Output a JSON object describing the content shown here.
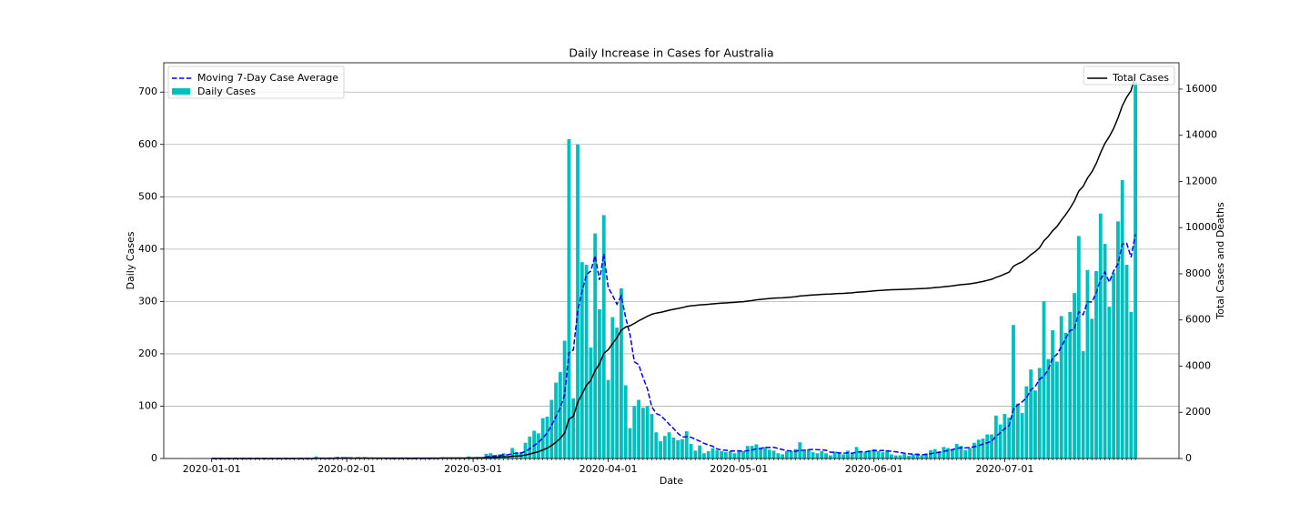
{
  "chart_data": {
    "type": "bar",
    "title": "Daily Increase in Cases for Australia",
    "x_label": "Date",
    "y_label": "Daily Cases",
    "y2_label": "Total Cases and Deaths",
    "grid": true,
    "xlim": [
      "2019-12-21",
      "2020-08-10"
    ],
    "xticks": [
      "2020-01-01",
      "2020-02-01",
      "2020-03-01",
      "2020-04-01",
      "2020-05-01",
      "2020-06-01",
      "2020-07-01"
    ],
    "ylim": [
      0,
      756
    ],
    "yticks": [
      0,
      100,
      200,
      300,
      400,
      500,
      600,
      700
    ],
    "y2lim": [
      0,
      17140
    ],
    "y2ticks": [
      0,
      2000,
      4000,
      6000,
      8000,
      10000,
      12000,
      14000,
      16000
    ],
    "x": [
      "2020-01-01",
      "2020-01-02",
      "2020-01-03",
      "2020-01-04",
      "2020-01-05",
      "2020-01-06",
      "2020-01-07",
      "2020-01-08",
      "2020-01-09",
      "2020-01-10",
      "2020-01-11",
      "2020-01-12",
      "2020-01-13",
      "2020-01-14",
      "2020-01-15",
      "2020-01-16",
      "2020-01-17",
      "2020-01-18",
      "2020-01-19",
      "2020-01-20",
      "2020-01-21",
      "2020-01-22",
      "2020-01-23",
      "2020-01-24",
      "2020-01-25",
      "2020-01-26",
      "2020-01-27",
      "2020-01-28",
      "2020-01-29",
      "2020-01-30",
      "2020-01-31",
      "2020-02-01",
      "2020-02-02",
      "2020-02-03",
      "2020-02-04",
      "2020-02-05",
      "2020-02-06",
      "2020-02-07",
      "2020-02-08",
      "2020-02-09",
      "2020-02-10",
      "2020-02-11",
      "2020-02-12",
      "2020-02-13",
      "2020-02-14",
      "2020-02-15",
      "2020-02-16",
      "2020-02-17",
      "2020-02-18",
      "2020-02-19",
      "2020-02-20",
      "2020-02-21",
      "2020-02-22",
      "2020-02-23",
      "2020-02-24",
      "2020-02-25",
      "2020-02-26",
      "2020-02-27",
      "2020-02-28",
      "2020-02-29",
      "2020-03-01",
      "2020-03-02",
      "2020-03-03",
      "2020-03-04",
      "2020-03-05",
      "2020-03-06",
      "2020-03-07",
      "2020-03-08",
      "2020-03-09",
      "2020-03-10",
      "2020-03-11",
      "2020-03-12",
      "2020-03-13",
      "2020-03-14",
      "2020-03-15",
      "2020-03-16",
      "2020-03-17",
      "2020-03-18",
      "2020-03-19",
      "2020-03-20",
      "2020-03-21",
      "2020-03-22",
      "2020-03-23",
      "2020-03-24",
      "2020-03-25",
      "2020-03-26",
      "2020-03-27",
      "2020-03-28",
      "2020-03-29",
      "2020-03-30",
      "2020-03-31",
      "2020-04-01",
      "2020-04-02",
      "2020-04-03",
      "2020-04-04",
      "2020-04-05",
      "2020-04-06",
      "2020-04-07",
      "2020-04-08",
      "2020-04-09",
      "2020-04-10",
      "2020-04-11",
      "2020-04-12",
      "2020-04-13",
      "2020-04-14",
      "2020-04-15",
      "2020-04-16",
      "2020-04-17",
      "2020-04-18",
      "2020-04-19",
      "2020-04-20",
      "2020-04-21",
      "2020-04-22",
      "2020-04-23",
      "2020-04-24",
      "2020-04-25",
      "2020-04-26",
      "2020-04-27",
      "2020-04-28",
      "2020-04-29",
      "2020-04-30",
      "2020-05-01",
      "2020-05-02",
      "2020-05-03",
      "2020-05-04",
      "2020-05-05",
      "2020-05-06",
      "2020-05-07",
      "2020-05-08",
      "2020-05-09",
      "2020-05-10",
      "2020-05-11",
      "2020-05-12",
      "2020-05-13",
      "2020-05-14",
      "2020-05-15",
      "2020-05-16",
      "2020-05-17",
      "2020-05-18",
      "2020-05-19",
      "2020-05-20",
      "2020-05-21",
      "2020-05-22",
      "2020-05-23",
      "2020-05-24",
      "2020-05-25",
      "2020-05-26",
      "2020-05-27",
      "2020-05-28",
      "2020-05-29",
      "2020-05-30",
      "2020-05-31",
      "2020-06-01",
      "2020-06-02",
      "2020-06-03",
      "2020-06-04",
      "2020-06-05",
      "2020-06-06",
      "2020-06-07",
      "2020-06-08",
      "2020-06-09",
      "2020-06-10",
      "2020-06-11",
      "2020-06-12",
      "2020-06-13",
      "2020-06-14",
      "2020-06-15",
      "2020-06-16",
      "2020-06-17",
      "2020-06-18",
      "2020-06-19",
      "2020-06-20",
      "2020-06-21",
      "2020-06-22",
      "2020-06-23",
      "2020-06-24",
      "2020-06-25",
      "2020-06-26",
      "2020-06-27",
      "2020-06-28",
      "2020-06-29",
      "2020-06-30",
      "2020-07-01",
      "2020-07-02",
      "2020-07-03",
      "2020-07-04",
      "2020-07-05",
      "2020-07-06",
      "2020-07-07",
      "2020-07-08",
      "2020-07-09",
      "2020-07-10",
      "2020-07-11",
      "2020-07-12",
      "2020-07-13",
      "2020-07-14",
      "2020-07-15",
      "2020-07-16",
      "2020-07-17",
      "2020-07-18",
      "2020-07-19",
      "2020-07-20",
      "2020-07-21",
      "2020-07-22",
      "2020-07-23",
      "2020-07-24",
      "2020-07-25",
      "2020-07-26",
      "2020-07-27",
      "2020-07-28",
      "2020-07-29",
      "2020-07-30",
      "2020-07-31"
    ],
    "series": [
      {
        "name": "Moving 7-Day Case Average",
        "type": "line",
        "linestyle": "dashed",
        "color": "#0000ff",
        "axis": "y",
        "legend": "upper left",
        "values": [
          0,
          0,
          0,
          0,
          0,
          0,
          0,
          0,
          0,
          0,
          0,
          0,
          0,
          0,
          0,
          0,
          0,
          0,
          0,
          0,
          0,
          0,
          0,
          0,
          0.6,
          0.6,
          0.7,
          0.7,
          0.9,
          1.3,
          1.3,
          1.1,
          1.1,
          1.0,
          1.1,
          1.0,
          0.7,
          0.7,
          0.3,
          0.3,
          0.3,
          0.1,
          0.1,
          0,
          0,
          0,
          0,
          0,
          0,
          0,
          0,
          0.3,
          0.3,
          0.6,
          0.6,
          0.6,
          0.6,
          0.6,
          0.3,
          0.9,
          0.9,
          1.3,
          1.6,
          2.9,
          4.3,
          5.1,
          5.7,
          6.9,
          7.0,
          9.6,
          10.0,
          10.3,
          13.7,
          18.6,
          24.7,
          31.0,
          39.1,
          48.9,
          63.1,
          79.6,
          97.1,
          121.7,
          202.0,
          207.4,
          281.7,
          319.3,
          351.4,
          358.1,
          387.4,
          341.0,
          391.0,
          326.7,
          311.7,
          294.6,
          310.7,
          269.3,
          236.9,
          184.7,
          179.3,
          154.6,
          133.1,
          98.9,
          86.0,
          82.4,
          74.3,
          65.4,
          57.3,
          48.0,
          41.1,
          41.4,
          40.7,
          36.7,
          33.1,
          28.9,
          25.9,
          23.4,
          18.3,
          16.3,
          15.9,
          14.3,
          14.3,
          14.6,
          13.7,
          14.9,
          16.3,
          18.4,
          19.3,
          21.0,
          21.1,
          21.3,
          19.3,
          17.0,
          15.1,
          14.3,
          13.7,
          15.7,
          15.6,
          16.7,
          17.3,
          16.7,
          16.7,
          15.6,
          12.0,
          11.9,
          10.7,
          10.1,
          10.9,
          10.1,
          11.9,
          13.0,
          12.9,
          13.7,
          15.1,
          15.0,
          15.4,
          14.6,
          13.7,
          12.9,
          11.4,
          10.1,
          8.9,
          8.3,
          7.4,
          7.1,
          7.7,
          9.1,
          10.4,
          11.7,
          13.7,
          15.1,
          16.9,
          19.4,
          20.6,
          20.3,
          21.1,
          22.3,
          24.6,
          27.4,
          30.0,
          33.1,
          42.6,
          49.0,
          56.9,
          62.9,
          93.9,
          102.3,
          108.1,
          116.1,
          131.1,
          137.6,
          151.1,
          157.6,
          169.7,
          192.3,
          199.0,
          213.6,
          229.3,
          244.6,
          246.9,
          280.4,
          274.7,
          299.7,
          299.0,
          315.9,
          342.7,
          356.1,
          336.9,
          358.3,
          371.6,
          409.4,
          411.1,
          384.3,
          428.6
        ]
      },
      {
        "name": "Daily Cases",
        "type": "bar",
        "color": "#00bfbf",
        "axis": "y",
        "legend": "upper left",
        "values": [
          0,
          0,
          0,
          0,
          0,
          0,
          0,
          0,
          0,
          0,
          0,
          0,
          0,
          0,
          0,
          0,
          0,
          0,
          0,
          0,
          0,
          0,
          0,
          0,
          4,
          0,
          1,
          0,
          1,
          3,
          0,
          3,
          0,
          0,
          1,
          0,
          1,
          0,
          0,
          0,
          0,
          0,
          0,
          0,
          0,
          0,
          0,
          0,
          0,
          0,
          0,
          2,
          0,
          2,
          0,
          0,
          0,
          0,
          0,
          4,
          2,
          3,
          2,
          9,
          10,
          6,
          8,
          10,
          4,
          20,
          12,
          12,
          30,
          42,
          53,
          48,
          77,
          80,
          112,
          145,
          165,
          225,
          610,
          115,
          600,
          375,
          370,
          212,
          430,
          285,
          465,
          150,
          270,
          250,
          325,
          140,
          58,
          100,
          112,
          97,
          100,
          85,
          50,
          33,
          43,
          50,
          40,
          35,
          37,
          52,
          28,
          15,
          25,
          10,
          14,
          20,
          16,
          14,
          12,
          14,
          10,
          16,
          14,
          24,
          24,
          27,
          20,
          22,
          17,
          15,
          10,
          8,
          14,
          14,
          18,
          31,
          14,
          18,
          12,
          10,
          14,
          10,
          6,
          13,
          10,
          8,
          15,
          9,
          22,
          14,
          12,
          16,
          18,
          14,
          12,
          16,
          8,
          6,
          6,
          9,
          5,
          8,
          10,
          6,
          10,
          16,
          18,
          14,
          22,
          20,
          18,
          28,
          24,
          16,
          20,
          30,
          36,
          38,
          46,
          46,
          82,
          65,
          85,
          78,
          255,
          105,
          87,
          138,
          170,
          130,
          173,
          300,
          190,
          245,
          185,
          272,
          240,
          280,
          316,
          425,
          205,
          360,
          267,
          358,
          468,
          410,
          290,
          355,
          453,
          532,
          370,
          280,
          720
        ]
      },
      {
        "name": "Total Cases",
        "type": "line",
        "linestyle": "solid",
        "color": "#000000",
        "axis": "y2",
        "legend": "upper right",
        "values": [
          0,
          0,
          0,
          0,
          0,
          0,
          0,
          0,
          0,
          0,
          0,
          0,
          0,
          0,
          0,
          0,
          0,
          0,
          0,
          0,
          0,
          0,
          0,
          0,
          4,
          4,
          5,
          5,
          6,
          9,
          9,
          12,
          12,
          12,
          13,
          13,
          14,
          14,
          14,
          14,
          14,
          14,
          14,
          14,
          14,
          14,
          14,
          14,
          14,
          14,
          14,
          16,
          16,
          18,
          18,
          18,
          18,
          18,
          18,
          22,
          24,
          27,
          29,
          38,
          48,
          54,
          62,
          72,
          76,
          96,
          108,
          120,
          150,
          192,
          245,
          293,
          370,
          450,
          562,
          707,
          872,
          1097,
          1707,
          1822,
          2422,
          2797,
          3167,
          3379,
          3809,
          4094,
          4559,
          4709,
          4979,
          5229,
          5554,
          5694,
          5752,
          5852,
          5964,
          6061,
          6161,
          6246,
          6296,
          6329,
          6372,
          6422,
          6462,
          6497,
          6534,
          6586,
          6614,
          6629,
          6654,
          6664,
          6678,
          6698,
          6714,
          6728,
          6740,
          6754,
          6764,
          6780,
          6794,
          6818,
          6842,
          6869,
          6889,
          6911,
          6928,
          6943,
          6953,
          6961,
          6975,
          6989,
          7007,
          7038,
          7052,
          7070,
          7082,
          7092,
          7106,
          7116,
          7122,
          7135,
          7145,
          7153,
          7168,
          7177,
          7199,
          7213,
          7225,
          7241,
          7259,
          7273,
          7285,
          7301,
          7309,
          7315,
          7321,
          7330,
          7335,
          7343,
          7353,
          7359,
          7369,
          7385,
          7403,
          7417,
          7439,
          7459,
          7477,
          7505,
          7529,
          7545,
          7565,
          7595,
          7631,
          7669,
          7715,
          7761,
          7843,
          7908,
          7993,
          8071,
          8326,
          8431,
          8518,
          8656,
          8826,
          8956,
          9129,
          9429,
          9619,
          9864,
          10049,
          10321,
          10561,
          10841,
          11157,
          11582,
          11787,
          12147,
          12414,
          12772,
          13240,
          13650,
          13940,
          14295,
          14748,
          15280,
          15650,
          15930,
          16650
        ]
      }
    ]
  }
}
